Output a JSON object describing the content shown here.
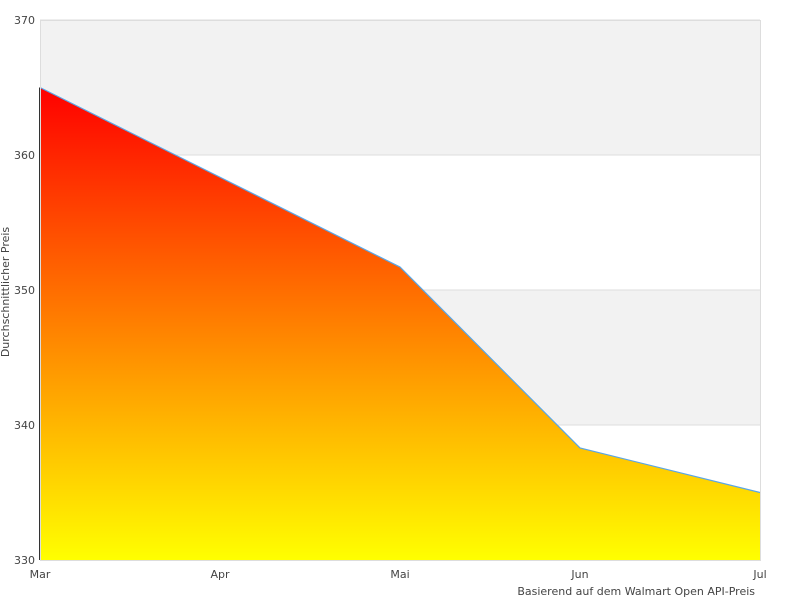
{
  "chart_data": {
    "type": "area",
    "title": "",
    "xlabel": "",
    "ylabel": "Durchschnittlicher Preis",
    "footnote": "Basierend auf dem Walmart Open API-Preis",
    "categories": [
      "Mar",
      "Apr",
      "Mai",
      "Jun",
      "Jul"
    ],
    "series": [
      {
        "x": [
          "Mar",
          "Mai",
          "Jun",
          "Jul"
        ],
        "values": [
          365.0,
          351.7,
          338.3,
          335.0
        ]
      }
    ],
    "ylim": [
      330,
      370
    ],
    "yticks": [
      "330",
      "340",
      "350",
      "360",
      "370"
    ],
    "grid": true,
    "legend": "none",
    "colors": {
      "fill_top": "#ff0000",
      "fill_bottom": "#ffff00",
      "line": "#5aa6e6",
      "band": "#f2f2f2",
      "grid": "#dddddd"
    }
  }
}
